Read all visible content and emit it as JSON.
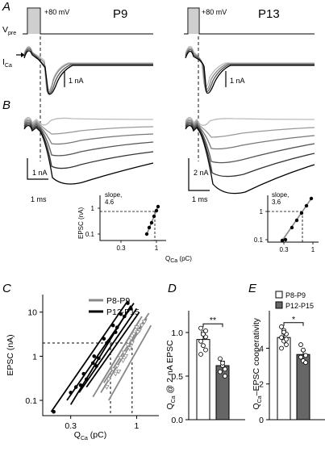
{
  "panels": {
    "a": "A",
    "b": "B",
    "c": "C",
    "d": "D",
    "e": "E"
  },
  "panel_a": {
    "vpre_label": "V",
    "vpre_sub": "pre",
    "ica_label": "I",
    "ica_sub": "Ca",
    "left_title": "P9",
    "right_title": "P13",
    "step_label": "+80 mV",
    "scale_left": "1 nA",
    "scale_right": "1 nA"
  },
  "panel_b": {
    "left_amp_scale": "1 nA",
    "left_time_scale": "1 ms",
    "right_amp_scale": "2 nA",
    "right_time_scale": "1 ms",
    "inset_left_slope": "slope,",
    "inset_left_slope_val": "4.6",
    "inset_right_slope": "slope,",
    "inset_right_slope_val": "3.6",
    "inset_ylabel": "EPSC (nA)",
    "inset_xlabel": "Q",
    "inset_xlabel_sub": "Ca",
    "inset_xlabel_unit": " (pC)",
    "inset_y_ticks": [
      "1",
      "0.1"
    ],
    "inset_x_ticks": [
      "0.3",
      "1"
    ],
    "inset_right_y_ticks": [
      "1",
      "0.1"
    ],
    "inset_right_x_ticks": [
      "0.3",
      "1"
    ]
  },
  "chart_data": [
    {
      "type": "scatter",
      "panel": "C",
      "ylabel": "EPSC (nA)",
      "xlabel": "Q",
      "xlabel_sub": "Ca",
      "xlabel_unit": " (pC)",
      "x_scale": "log",
      "y_scale": "log",
      "xlim": [
        0.18,
        1.5
      ],
      "ylim": [
        0.045,
        25
      ],
      "x_ticks": [
        {
          "v": 0.3,
          "label": "0.3"
        },
        {
          "v": 1,
          "label": "1"
        }
      ],
      "y_ticks": [
        {
          "v": 10,
          "label": "10"
        },
        {
          "v": 1,
          "label": "1"
        },
        {
          "v": 0.1,
          "label": "0.1"
        }
      ],
      "reference_lines": {
        "y": 2,
        "x": [
          0.62,
          0.92
        ]
      },
      "legend": [
        "P8-P9",
        "P12-P15"
      ],
      "legend_position": "top-center",
      "series": [
        {
          "name": "P8-P9",
          "color": "#888888",
          "lines": [
            [
              [
                0.45,
                0.12
              ],
              [
                1.05,
                6.5
              ]
            ],
            [
              [
                0.52,
                0.15
              ],
              [
                1.2,
                7.2
              ]
            ],
            [
              [
                0.6,
                0.1
              ],
              [
                1.3,
                5.0
              ]
            ],
            [
              [
                0.5,
                0.2
              ],
              [
                1.1,
                8.0
              ]
            ],
            [
              [
                0.55,
                0.25
              ],
              [
                1.25,
                9.5
              ]
            ]
          ],
          "points": [
            [
              0.6,
              0.3
            ],
            [
              0.7,
              0.6
            ],
            [
              0.8,
              1.2
            ],
            [
              0.9,
              2.5
            ],
            [
              1.0,
              4.5
            ],
            [
              0.65,
              0.5
            ],
            [
              0.75,
              0.9
            ],
            [
              0.85,
              1.8
            ],
            [
              0.95,
              3.2
            ],
            [
              1.1,
              5.0
            ],
            [
              0.58,
              0.2
            ],
            [
              0.68,
              0.4
            ],
            [
              0.78,
              0.8
            ],
            [
              0.88,
              1.5
            ],
            [
              1.05,
              3.8
            ],
            [
              0.72,
              0.45
            ],
            [
              0.82,
              1.0
            ],
            [
              0.92,
              2.0
            ],
            [
              1.02,
              3.5
            ],
            [
              1.15,
              6.0
            ]
          ]
        },
        {
          "name": "P12-P15",
          "color": "#000000",
          "lines": [
            [
              [
                0.21,
                0.055
              ],
              [
                0.85,
                18
              ]
            ],
            [
              [
                0.28,
                0.1
              ],
              [
                0.95,
                16
              ]
            ],
            [
              [
                0.35,
                0.15
              ],
              [
                1.0,
                12
              ]
            ],
            [
              [
                0.4,
                0.2
              ],
              [
                1.05,
                10
              ]
            ],
            [
              [
                0.3,
                0.08
              ],
              [
                0.9,
                14
              ]
            ]
          ],
          "points": [
            [
              0.22,
              0.055
            ],
            [
              0.3,
              0.15
            ],
            [
              0.38,
              0.4
            ],
            [
              0.46,
              1.0
            ],
            [
              0.55,
              2.5
            ],
            [
              0.65,
              5.0
            ],
            [
              0.75,
              9.0
            ],
            [
              0.85,
              16.0
            ],
            [
              0.4,
              0.3
            ],
            [
              0.5,
              0.9
            ],
            [
              0.6,
              2.2
            ],
            [
              0.7,
              4.5
            ],
            [
              0.8,
              8.0
            ],
            [
              0.33,
              0.2
            ],
            [
              0.45,
              0.7
            ],
            [
              0.58,
              2.0
            ],
            [
              0.68,
              3.5
            ],
            [
              0.9,
              12.0
            ],
            [
              0.36,
              0.22
            ],
            [
              0.48,
              0.6
            ]
          ]
        }
      ]
    },
    {
      "type": "bar",
      "panel": "D",
      "ylabel": "Q",
      "ylabel_sub": "Ca",
      "ylabel_rest": " @ 2 nA EPSC",
      "categories": [
        "P8-P9",
        "P12-P15"
      ],
      "values": [
        0.92,
        0.62
      ],
      "errors": [
        0.05,
        0.05
      ],
      "ylim": [
        0,
        1.25
      ],
      "y_ticks": [
        {
          "v": 0,
          "label": "0.0"
        },
        {
          "v": 0.5,
          "label": "0.5"
        },
        {
          "v": 1.0,
          "label": "1.0"
        }
      ],
      "significance": "**",
      "points": [
        [
          1.05,
          1.0,
          0.95,
          0.9,
          0.85,
          0.8,
          0.75,
          0.98,
          1.02
        ],
        [
          0.7,
          0.62,
          0.58,
          0.55,
          0.65,
          0.5
        ]
      ],
      "colors": [
        "#ffffff",
        "#666666"
      ]
    },
    {
      "type": "bar",
      "panel": "E",
      "ylabel": "Q",
      "ylabel_sub": "Ca",
      "ylabel_rest": "–EPSC cooperativity",
      "categories": [
        "P8-P9",
        "P12-P15"
      ],
      "values": [
        4.6,
        3.65
      ],
      "errors": [
        0.2,
        0.2
      ],
      "ylim": [
        0,
        6.1
      ],
      "y_ticks": [
        {
          "v": 0,
          "label": "0"
        },
        {
          "v": 2,
          "label": "2"
        },
        {
          "v": 4,
          "label": "4"
        }
      ],
      "significance": "*",
      "points": [
        [
          5.2,
          5.0,
          4.8,
          4.6,
          4.4,
          4.2,
          4.0,
          4.9,
          4.5
        ],
        [
          4.2,
          3.9,
          3.6,
          3.5,
          3.3,
          3.2
        ]
      ],
      "legend": [
        "P8-P9",
        "P12-P15"
      ],
      "legend_position": "top",
      "colors": [
        "#ffffff",
        "#666666"
      ]
    }
  ]
}
